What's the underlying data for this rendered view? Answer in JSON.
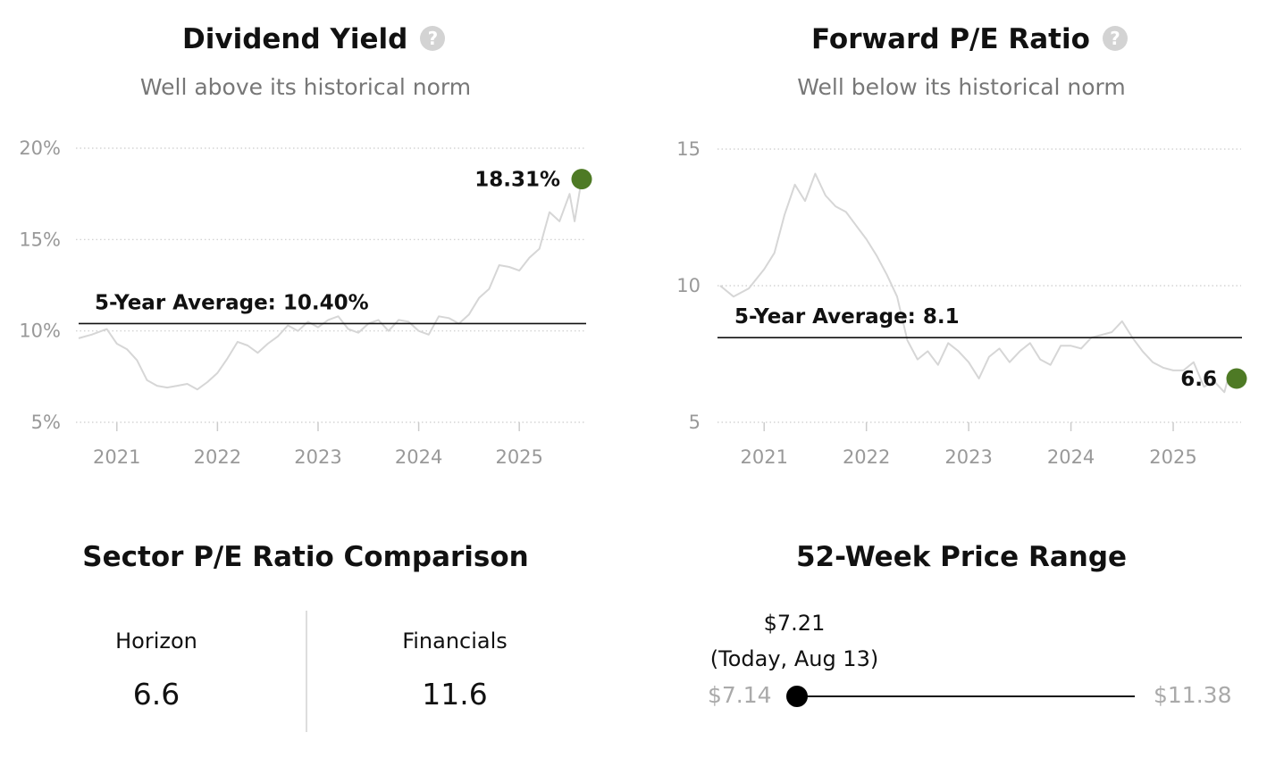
{
  "dividend_yield": {
    "title": "Dividend Yield",
    "subtitle": "Well above its historical norm",
    "help_icon": "question-icon",
    "average_label": "5-Year Average: 10.40%",
    "current_label": "18.31%"
  },
  "forward_pe": {
    "title": "Forward P/E Ratio",
    "subtitle": "Well below its historical norm",
    "help_icon": "question-icon",
    "average_label": "5-Year Average: 8.1",
    "current_label": "6.6"
  },
  "sector_pe": {
    "title": "Sector P/E Ratio Comparison",
    "items": [
      {
        "name": "Horizon",
        "value": "6.6"
      },
      {
        "name": "Financials",
        "value": "11.6"
      }
    ]
  },
  "price_range": {
    "title": "52-Week Price Range",
    "low": "$7.14",
    "high": "$11.38",
    "today_price": "$7.21",
    "today_date": "(Today, Aug 13)",
    "today_value": 7.21,
    "low_value": 7.14,
    "high_value": 11.38
  },
  "colors": {
    "line": "#d6d6d6",
    "current_dot": "#4e7a25",
    "average_line": "#111111",
    "grid": "#cccccc"
  },
  "chart_data": [
    {
      "type": "line",
      "title": "Dividend Yield",
      "subtitle": "Well above its historical norm",
      "y_unit": "%",
      "ylim": [
        5,
        20
      ],
      "y_ticks": [
        5,
        10,
        15,
        20
      ],
      "y_tick_labels": [
        "5%",
        "10%",
        "15%",
        "20%"
      ],
      "x_ticks": [
        2021,
        2022,
        2023,
        2024,
        2025
      ],
      "x_tick_labels": [
        "2021",
        "2022",
        "2023",
        "2024",
        "2025"
      ],
      "xlim": [
        2020.62,
        2025.62
      ],
      "grid": true,
      "average": 10.4,
      "current": {
        "x": 2025.62,
        "y": 18.31,
        "label": "18.31%"
      },
      "series": [
        {
          "x": [
            2020.62,
            2020.75,
            2020.9,
            2021.0,
            2021.1,
            2021.2,
            2021.3,
            2021.4,
            2021.5,
            2021.6,
            2021.7,
            2021.8,
            2021.9,
            2022.0,
            2022.1,
            2022.2,
            2022.3,
            2022.4,
            2022.5,
            2022.6,
            2022.7,
            2022.8,
            2022.9,
            2023.0,
            2023.1,
            2023.2,
            2023.3,
            2023.4,
            2023.5,
            2023.6,
            2023.7,
            2023.8,
            2023.9,
            2024.0,
            2024.1,
            2024.2,
            2024.3,
            2024.4,
            2024.5,
            2024.6,
            2024.7,
            2024.8,
            2024.9,
            2025.0,
            2025.1,
            2025.2,
            2025.3,
            2025.4,
            2025.5,
            2025.55,
            2025.62
          ],
          "y": [
            9.6,
            9.8,
            10.1,
            9.3,
            9.0,
            8.4,
            7.3,
            7.0,
            6.9,
            7.0,
            7.1,
            6.8,
            7.2,
            7.7,
            8.5,
            9.4,
            9.2,
            8.8,
            9.3,
            9.7,
            10.3,
            10.0,
            10.5,
            10.2,
            10.6,
            10.8,
            10.1,
            9.9,
            10.4,
            10.6,
            10.0,
            10.6,
            10.5,
            10.0,
            9.8,
            10.8,
            10.7,
            10.4,
            10.9,
            11.8,
            12.3,
            13.6,
            13.5,
            13.3,
            14.0,
            14.5,
            16.5,
            16.0,
            17.5,
            16.0,
            18.31
          ]
        }
      ]
    },
    {
      "type": "line",
      "title": "Forward P/E Ratio",
      "subtitle": "Well below its historical norm",
      "ylim": [
        5,
        15
      ],
      "y_ticks": [
        5,
        10,
        15
      ],
      "y_tick_labels": [
        "5",
        "10",
        "15"
      ],
      "x_ticks": [
        2021,
        2022,
        2023,
        2024,
        2025
      ],
      "x_tick_labels": [
        "2021",
        "2022",
        "2023",
        "2024",
        "2025"
      ],
      "xlim": [
        2020.57,
        2025.62
      ],
      "grid": true,
      "average": 8.1,
      "current": {
        "x": 2025.62,
        "y": 6.6,
        "label": "6.6"
      },
      "series": [
        {
          "x": [
            2020.57,
            2020.7,
            2020.85,
            2021.0,
            2021.1,
            2021.2,
            2021.3,
            2021.4,
            2021.5,
            2021.6,
            2021.7,
            2021.8,
            2021.9,
            2022.0,
            2022.1,
            2022.2,
            2022.3,
            2022.4,
            2022.5,
            2022.6,
            2022.7,
            2022.8,
            2022.9,
            2023.0,
            2023.1,
            2023.2,
            2023.3,
            2023.4,
            2023.5,
            2023.6,
            2023.7,
            2023.8,
            2023.9,
            2024.0,
            2024.1,
            2024.2,
            2024.3,
            2024.4,
            2024.5,
            2024.6,
            2024.7,
            2024.8,
            2024.9,
            2025.0,
            2025.1,
            2025.2,
            2025.3,
            2025.4,
            2025.5,
            2025.55,
            2025.62
          ],
          "y": [
            10.0,
            9.6,
            9.9,
            10.6,
            11.2,
            12.6,
            13.7,
            13.1,
            14.1,
            13.3,
            12.9,
            12.7,
            12.2,
            11.7,
            11.1,
            10.4,
            9.6,
            8.0,
            7.3,
            7.6,
            7.1,
            7.9,
            7.6,
            7.2,
            6.6,
            7.4,
            7.7,
            7.2,
            7.6,
            7.9,
            7.3,
            7.1,
            7.8,
            7.8,
            7.7,
            8.1,
            8.2,
            8.3,
            8.7,
            8.1,
            7.6,
            7.2,
            7.0,
            6.9,
            6.9,
            7.2,
            6.3,
            6.5,
            6.1,
            6.8,
            6.6
          ]
        }
      ]
    }
  ]
}
